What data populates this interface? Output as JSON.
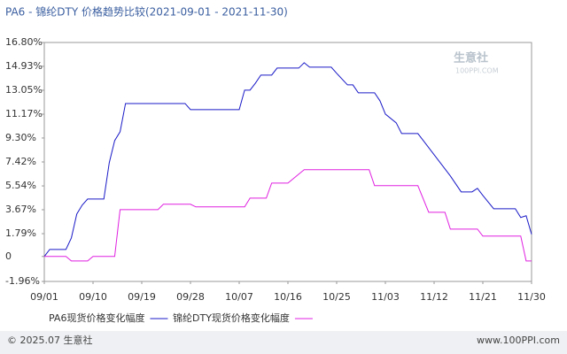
{
  "chart_data": {
    "type": "line",
    "title": "PA6 - 锦纶DTY 价格趋势比较(2021-09-01 - 2021-11-30)",
    "watermark": "生意社",
    "watermark_url": "100PPI.COM",
    "xlim": [
      "09/01",
      "11/30"
    ],
    "xticks": [
      "09/01",
      "09/10",
      "09/19",
      "09/28",
      "10/07",
      "10/16",
      "10/25",
      "11/03",
      "11/12",
      "11/21",
      "11/30"
    ],
    "ylim": [
      -1.96,
      16.8
    ],
    "yticks": [
      {
        "value": -1.96,
        "label": "-1.96%"
      },
      0,
      {
        "value": 1.79,
        "label": "1.79%"
      },
      {
        "value": 3.67,
        "label": "3.67%"
      },
      {
        "value": 5.54,
        "label": "5.54%"
      },
      {
        "value": 7.42,
        "label": "7.42%"
      },
      {
        "value": 9.3,
        "label": "9.30%"
      },
      {
        "value": 11.17,
        "label": "11.17%"
      },
      {
        "value": 13.05,
        "label": "13.05%"
      },
      {
        "value": 14.93,
        "label": "14.93%"
      },
      {
        "value": 16.8,
        "label": "16.80%"
      }
    ],
    "grid": false,
    "series": [
      {
        "name": "PA6现货价格变化幅度",
        "color": "#1a1ac8",
        "x": [
          "09/01",
          "09/02",
          "09/05",
          "09/06",
          "09/07",
          "09/08",
          "09/09",
          "09/12",
          "09/13",
          "09/14",
          "09/15",
          "09/16",
          "09/27",
          "09/28",
          "10/07",
          "10/08",
          "10/09",
          "10/10",
          "10/11",
          "10/13",
          "10/14",
          "10/18",
          "10/19",
          "10/20",
          "10/24",
          "10/25",
          "10/27",
          "10/28",
          "10/29",
          "11/01",
          "11/02",
          "11/03",
          "11/05",
          "11/06",
          "11/09",
          "11/10",
          "11/13",
          "11/15",
          "11/17",
          "11/19",
          "11/20",
          "11/21",
          "11/23",
          "11/27",
          "11/28",
          "11/29",
          "11/30"
        ],
        "values": [
          0,
          0.55,
          0.55,
          1.46,
          3.33,
          4.03,
          4.51,
          4.51,
          7.36,
          9.1,
          9.79,
          12.01,
          12.01,
          11.53,
          11.53,
          13.06,
          13.06,
          13.61,
          14.24,
          14.24,
          14.79,
          14.79,
          15.21,
          14.86,
          14.86,
          14.38,
          13.47,
          13.47,
          12.85,
          12.85,
          12.22,
          11.18,
          10.49,
          9.65,
          9.65,
          9.1,
          7.43,
          6.32,
          5.07,
          5.07,
          5.35,
          4.79,
          3.75,
          3.75,
          3.06,
          3.2,
          1.74
        ]
      },
      {
        "name": "锦纶DTY现货价格变化幅度",
        "color": "#e020e0",
        "x": [
          "09/01",
          "09/05",
          "09/06",
          "09/09",
          "09/10",
          "09/14",
          "09/15",
          "09/22",
          "09/23",
          "09/28",
          "09/29",
          "10/08",
          "10/09",
          "10/12",
          "10/13",
          "10/16",
          "10/19",
          "10/31",
          "11/01",
          "11/09",
          "11/11",
          "11/14",
          "11/15",
          "11/20",
          "11/21",
          "11/28",
          "11/29",
          "11/30"
        ],
        "values": [
          0,
          0,
          -0.35,
          -0.35,
          0,
          0,
          3.68,
          3.68,
          4.1,
          4.1,
          3.89,
          3.89,
          4.58,
          4.58,
          5.76,
          5.76,
          6.81,
          6.81,
          5.56,
          5.56,
          3.47,
          3.47,
          2.15,
          2.15,
          1.6,
          1.6,
          -0.35,
          -0.35
        ]
      }
    ]
  },
  "footer": {
    "left": "© 2025.07 生意社",
    "right": "www.100PPI.com"
  }
}
